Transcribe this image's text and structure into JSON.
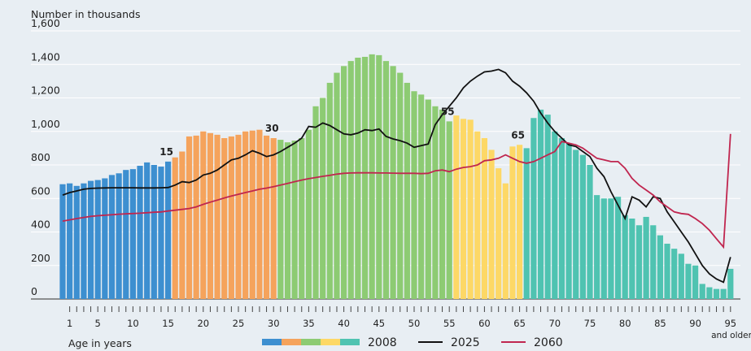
{
  "chart_data": {
    "type": "bar_line",
    "y_axis_title": "Number in thousands",
    "x_axis_title": "Age in years",
    "x_note": "and older",
    "ylim": [
      0,
      1600
    ],
    "yticks": [
      0,
      200,
      400,
      600,
      800,
      {
        "value": 1000,
        "label": "1,000"
      },
      {
        "value": 1200,
        "label": "1,200"
      },
      {
        "value": 1400,
        "label": "1,400"
      },
      {
        "value": 1600,
        "label": "1,600"
      }
    ],
    "grid": true,
    "categories": [
      null,
      "1",
      null,
      null,
      null,
      "5",
      null,
      null,
      null,
      null,
      "10",
      null,
      null,
      null,
      null,
      "15",
      null,
      null,
      null,
      null,
      "20",
      null,
      null,
      null,
      null,
      "25",
      null,
      null,
      null,
      null,
      "30",
      null,
      null,
      null,
      null,
      "35",
      null,
      null,
      null,
      null,
      "40",
      null,
      null,
      null,
      null,
      "45",
      null,
      null,
      null,
      null,
      "50",
      null,
      null,
      null,
      null,
      "55",
      null,
      null,
      null,
      null,
      "60",
      null,
      null,
      null,
      null,
      "65",
      null,
      null,
      null,
      null,
      "70",
      null,
      null,
      null,
      null,
      "75",
      null,
      null,
      null,
      null,
      "80",
      null,
      null,
      null,
      null,
      "85",
      null,
      null,
      null,
      null,
      "90",
      null,
      null,
      null,
      null,
      "95"
    ],
    "age_markers": [
      15,
      30,
      55,
      65
    ],
    "series": [
      {
        "name": "2008",
        "kind": "bar",
        "colors": [
          "#3d8fd0",
          "#f5a35c",
          "#8dcb73",
          "#fdd866",
          "#4fc3b1"
        ],
        "values": [
          685,
          690,
          675,
          690,
          705,
          710,
          720,
          740,
          750,
          770,
          775,
          795,
          815,
          800,
          790,
          820,
          845,
          880,
          970,
          975,
          1000,
          990,
          980,
          960,
          970,
          980,
          1000,
          1005,
          1010,
          975,
          960,
          950,
          935,
          945,
          960,
          1010,
          1150,
          1200,
          1290,
          1350,
          1390,
          1420,
          1440,
          1445,
          1460,
          1455,
          1420,
          1390,
          1350,
          1290,
          1240,
          1220,
          1190,
          1150,
          1130,
          1060,
          1095,
          1075,
          1070,
          1000,
          960,
          890,
          780,
          690,
          910,
          920,
          900,
          1080,
          1130,
          1100,
          1000,
          960,
          930,
          890,
          860,
          800,
          620,
          600,
          600,
          610,
          500,
          480,
          440,
          490,
          440,
          380,
          330,
          300,
          270,
          210,
          200,
          90,
          70,
          60,
          60,
          180
        ]
      },
      {
        "name": "2025",
        "kind": "line",
        "color": "#111111",
        "values": [
          620,
          635,
          645,
          655,
          660,
          662,
          663,
          664,
          664,
          664,
          664,
          663,
          663,
          663,
          664,
          665,
          680,
          700,
          695,
          710,
          740,
          750,
          770,
          800,
          830,
          840,
          860,
          885,
          870,
          850,
          860,
          880,
          905,
          930,
          960,
          1030,
          1025,
          1050,
          1035,
          1010,
          985,
          980,
          990,
          1010,
          1005,
          1015,
          970,
          955,
          945,
          930,
          905,
          915,
          925,
          1040,
          1100,
          1150,
          1200,
          1260,
          1300,
          1330,
          1355,
          1360,
          1370,
          1350,
          1300,
          1270,
          1230,
          1180,
          1110,
          1050,
          1000,
          960,
          920,
          910,
          880,
          850,
          780,
          730,
          640,
          560,
          480,
          610,
          590,
          550,
          610,
          600,
          520,
          460,
          400,
          340,
          270,
          200,
          150,
          120,
          100,
          250
        ]
      },
      {
        "name": "2060",
        "kind": "line",
        "color": "#c0264f",
        "values": [
          465,
          472,
          480,
          487,
          493,
          497,
          500,
          503,
          506,
          508,
          510,
          512,
          515,
          518,
          520,
          525,
          530,
          535,
          540,
          550,
          565,
          578,
          590,
          603,
          615,
          625,
          635,
          645,
          655,
          662,
          670,
          680,
          690,
          700,
          710,
          718,
          725,
          732,
          738,
          745,
          750,
          752,
          753,
          753,
          753,
          752,
          752,
          751,
          750,
          750,
          750,
          748,
          750,
          765,
          770,
          760,
          775,
          785,
          790,
          800,
          825,
          830,
          840,
          860,
          840,
          820,
          810,
          820,
          840,
          860,
          880,
          940,
          930,
          920,
          900,
          870,
          840,
          830,
          820,
          820,
          780,
          720,
          680,
          650,
          620,
          580,
          550,
          520,
          510,
          505,
          480,
          450,
          410,
          360,
          310,
          985
        ]
      }
    ]
  }
}
